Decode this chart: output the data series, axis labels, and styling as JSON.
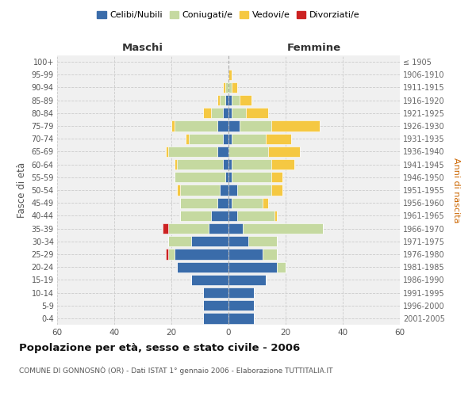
{
  "age_groups": [
    "0-4",
    "5-9",
    "10-14",
    "15-19",
    "20-24",
    "25-29",
    "30-34",
    "35-39",
    "40-44",
    "45-49",
    "50-54",
    "55-59",
    "60-64",
    "65-69",
    "70-74",
    "75-79",
    "80-84",
    "85-89",
    "90-94",
    "95-99",
    "100+"
  ],
  "birth_years": [
    "2001-2005",
    "1996-2000",
    "1991-1995",
    "1986-1990",
    "1981-1985",
    "1976-1980",
    "1971-1975",
    "1966-1970",
    "1961-1965",
    "1956-1960",
    "1951-1955",
    "1946-1950",
    "1941-1945",
    "1936-1940",
    "1931-1935",
    "1926-1930",
    "1921-1925",
    "1916-1920",
    "1911-1915",
    "1906-1910",
    "≤ 1905"
  ],
  "males": {
    "celibi": [
      9,
      9,
      9,
      13,
      18,
      19,
      13,
      7,
      6,
      4,
      3,
      1,
      2,
      4,
      2,
      4,
      2,
      1,
      0,
      0,
      0
    ],
    "coniugati": [
      0,
      0,
      0,
      0,
      0,
      2,
      8,
      14,
      11,
      13,
      14,
      18,
      16,
      17,
      12,
      15,
      4,
      2,
      1,
      0,
      0
    ],
    "vedovi": [
      0,
      0,
      0,
      0,
      0,
      0,
      0,
      0,
      0,
      0,
      1,
      0,
      1,
      1,
      1,
      1,
      3,
      1,
      1,
      0,
      0
    ],
    "divorziati": [
      0,
      0,
      0,
      0,
      0,
      1,
      0,
      2,
      0,
      0,
      0,
      0,
      0,
      0,
      0,
      0,
      0,
      0,
      0,
      0,
      0
    ]
  },
  "females": {
    "nubili": [
      9,
      9,
      9,
      13,
      17,
      12,
      7,
      5,
      3,
      1,
      3,
      1,
      1,
      0,
      1,
      4,
      1,
      1,
      0,
      0,
      0
    ],
    "coniugate": [
      0,
      0,
      0,
      0,
      3,
      5,
      10,
      28,
      13,
      11,
      12,
      14,
      14,
      14,
      12,
      11,
      5,
      3,
      1,
      0,
      0
    ],
    "vedove": [
      0,
      0,
      0,
      0,
      0,
      0,
      0,
      0,
      1,
      2,
      4,
      4,
      8,
      11,
      9,
      17,
      8,
      4,
      2,
      1,
      0
    ],
    "divorziate": [
      0,
      0,
      0,
      0,
      0,
      0,
      0,
      0,
      0,
      0,
      0,
      0,
      0,
      0,
      0,
      0,
      0,
      0,
      0,
      0,
      0
    ]
  },
  "colors": {
    "celibi": "#3a6caa",
    "coniugati": "#c5d9a0",
    "vedovi": "#f5c842",
    "divorziati": "#cc2222"
  },
  "xlim": 60,
  "title": "Popolazione per età, sesso e stato civile - 2006",
  "subtitle": "COMUNE DI GONNOSNÒ (OR) - Dati ISTAT 1° gennaio 2006 - Elaborazione TUTTITALIA.IT",
  "ylabel_left": "Fasce di età",
  "ylabel_right": "Anni di nascita",
  "xlabel_left": "Maschi",
  "xlabel_right": "Femmine",
  "legend_labels": [
    "Celibi/Nubili",
    "Coniugati/e",
    "Vedovi/e",
    "Divorziati/e"
  ],
  "bg_color": "#f0f0f0",
  "grid_color": "#cccccc"
}
